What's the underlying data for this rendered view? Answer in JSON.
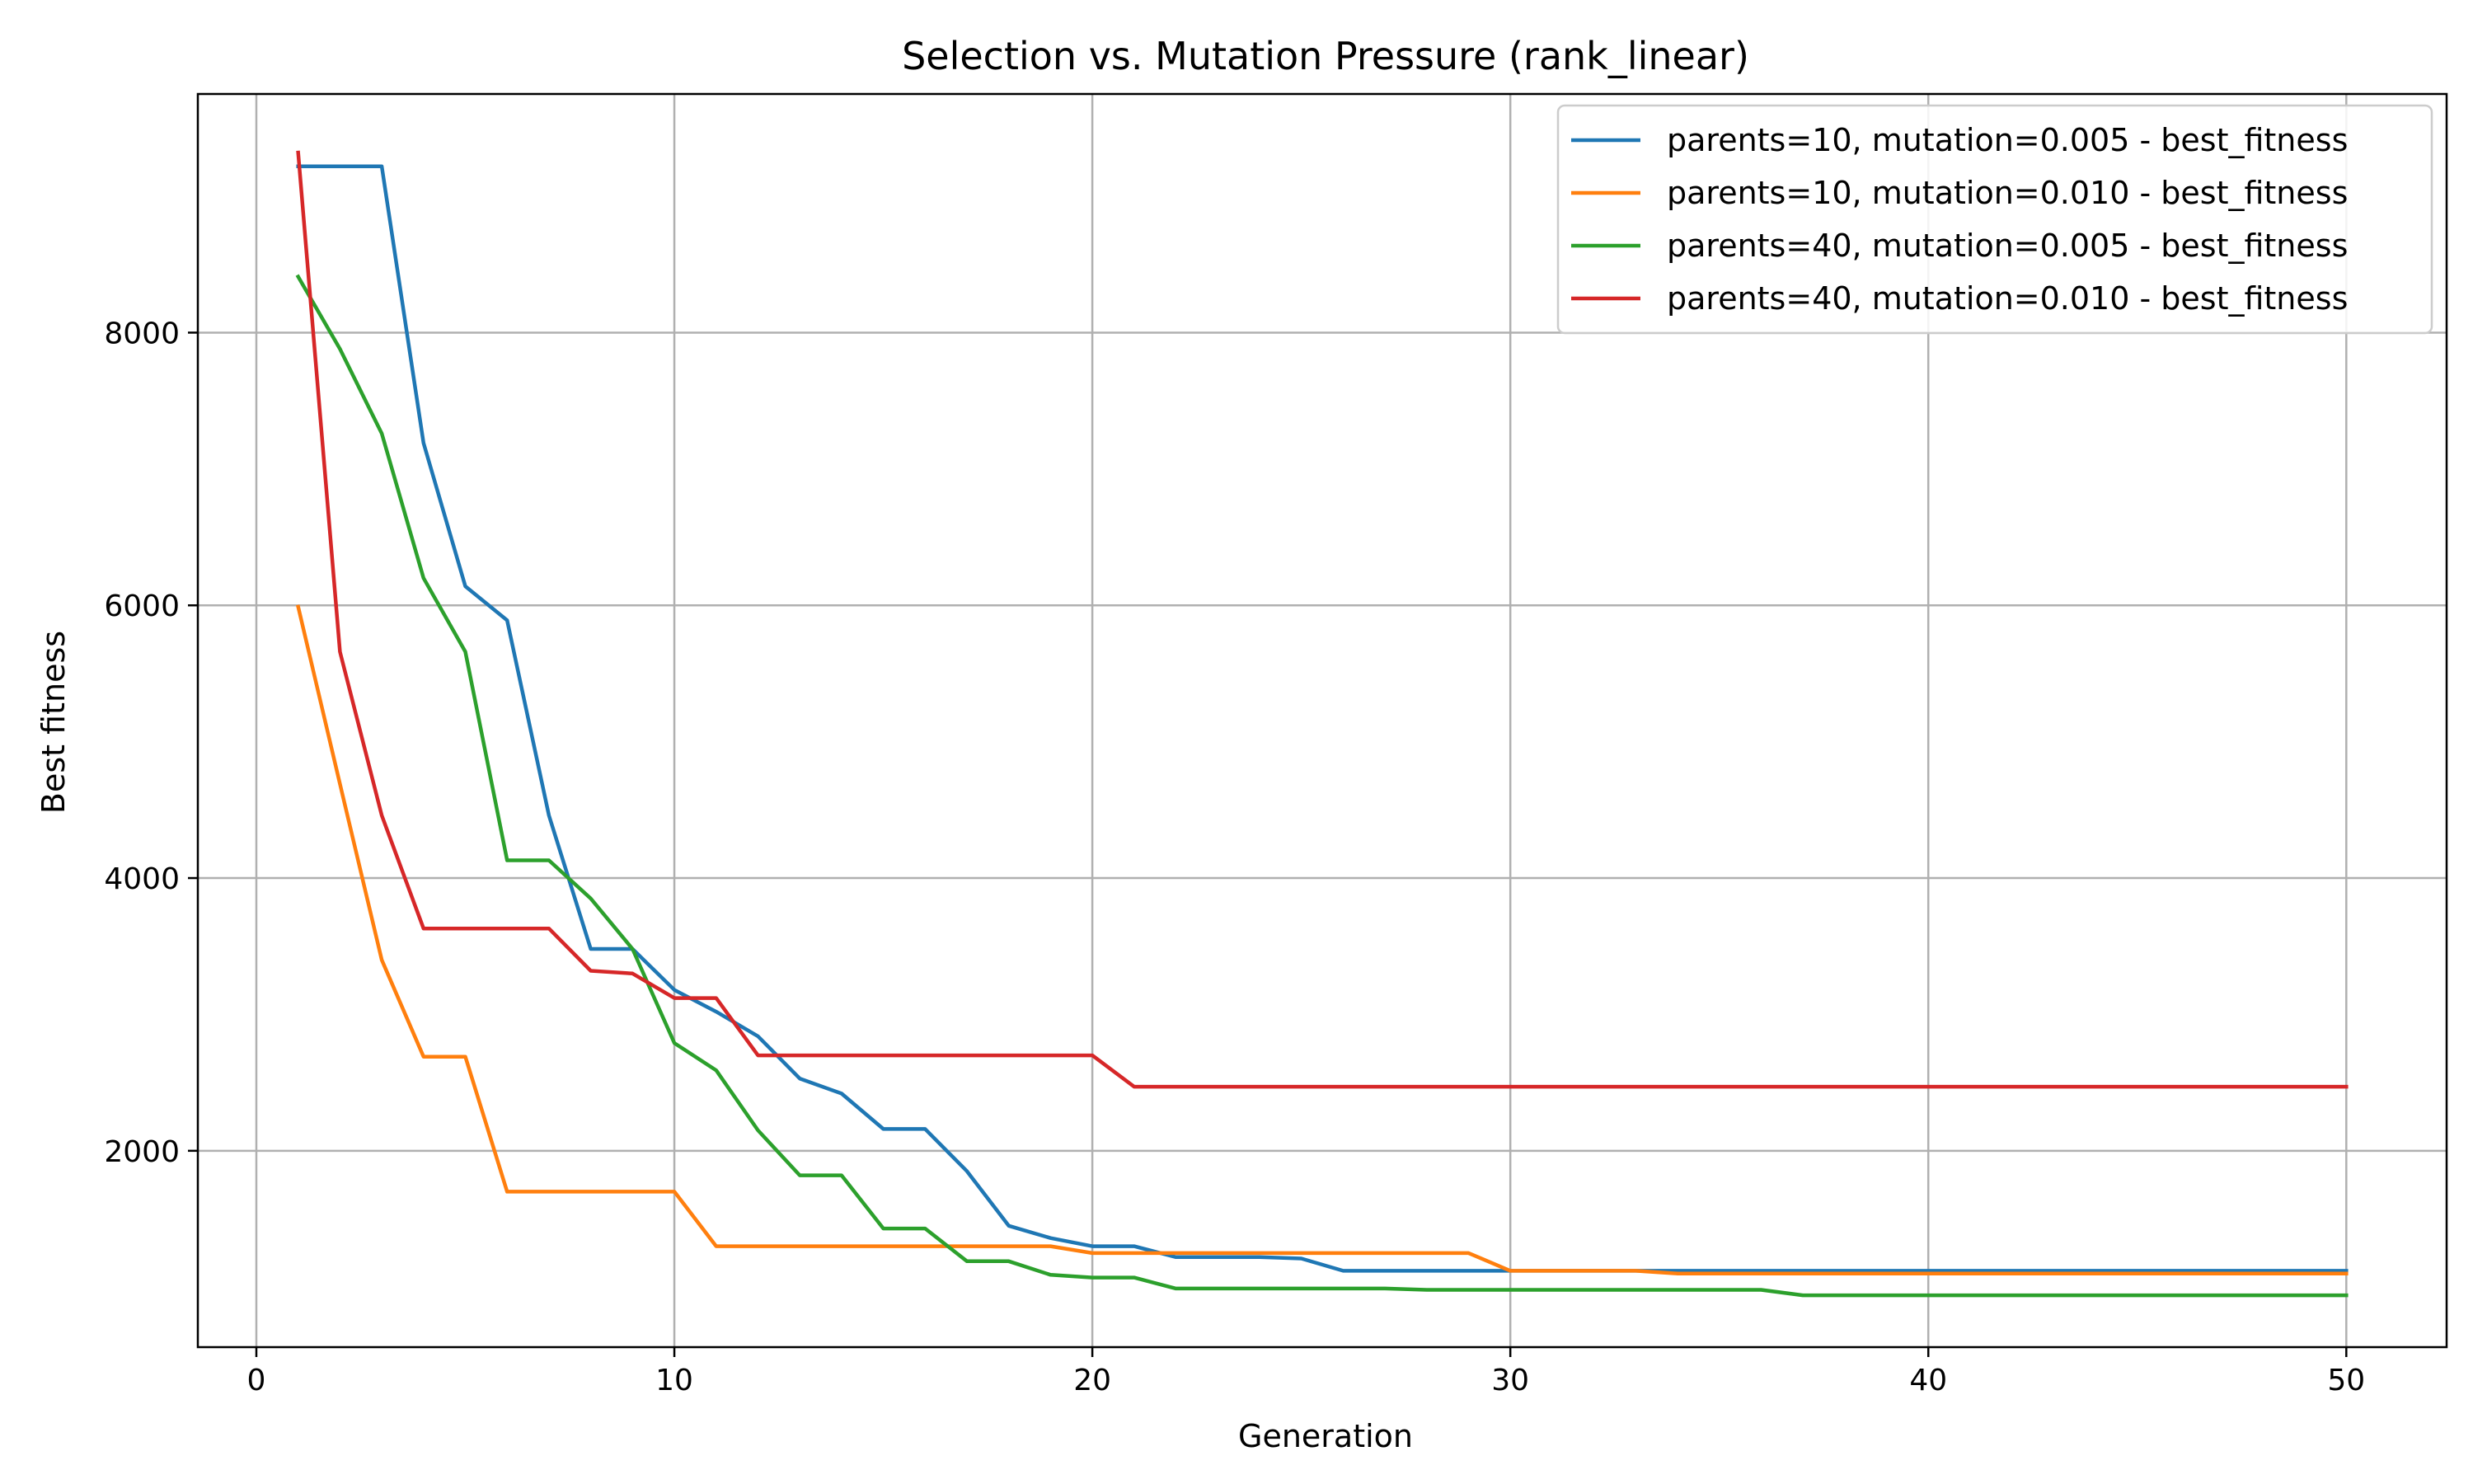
{
  "chart_data": {
    "type": "line",
    "title": "Selection vs. Mutation Pressure (rank_linear)",
    "xlabel": "Generation",
    "ylabel": "Best fitness",
    "xlim": [
      -1.4,
      52.4
    ],
    "ylim": [
      560,
      9750
    ],
    "xticks": [
      0,
      10,
      20,
      30,
      40,
      50
    ],
    "yticks": [
      2000,
      4000,
      6000,
      8000
    ],
    "grid": true,
    "legend_position": "top-right",
    "x": [
      1,
      2,
      3,
      4,
      5,
      6,
      7,
      8,
      9,
      10,
      11,
      12,
      13,
      14,
      15,
      16,
      17,
      18,
      19,
      20,
      21,
      22,
      23,
      24,
      25,
      26,
      27,
      28,
      29,
      30,
      31,
      32,
      33,
      34,
      35,
      36,
      37,
      38,
      39,
      40,
      41,
      42,
      43,
      44,
      45,
      46,
      47,
      48,
      49,
      50
    ],
    "series": [
      {
        "name": "parents=10, mutation=0.005 - best_fitness",
        "color": "#1f77b4",
        "values": [
          9220,
          9220,
          9220,
          7190,
          6140,
          5890,
          4460,
          3480,
          3480,
          3180,
          3020,
          2840,
          2530,
          2420,
          2160,
          2160,
          1850,
          1450,
          1360,
          1300,
          1300,
          1220,
          1220,
          1220,
          1210,
          1120,
          1120,
          1120,
          1120,
          1120,
          1120,
          1120,
          1120,
          1120,
          1120,
          1120,
          1120,
          1120,
          1120,
          1120,
          1120,
          1120,
          1120,
          1120,
          1120,
          1120,
          1120,
          1120,
          1120,
          1120
        ]
      },
      {
        "name": "parents=10, mutation=0.010 - best_fitness",
        "color": "#ff7f0e",
        "values": [
          5990,
          4690,
          3400,
          2690,
          2690,
          1700,
          1700,
          1700,
          1700,
          1700,
          1300,
          1300,
          1300,
          1300,
          1300,
          1300,
          1300,
          1300,
          1300,
          1250,
          1250,
          1250,
          1250,
          1250,
          1250,
          1250,
          1250,
          1250,
          1250,
          1120,
          1120,
          1120,
          1120,
          1100,
          1100,
          1100,
          1100,
          1100,
          1100,
          1100,
          1100,
          1100,
          1100,
          1100,
          1100,
          1100,
          1100,
          1100,
          1100,
          1100
        ]
      },
      {
        "name": "parents=40, mutation=0.005 - best_fitness",
        "color": "#2ca02c",
        "values": [
          8410,
          7880,
          7260,
          6200,
          5660,
          4130,
          4130,
          3850,
          3480,
          2790,
          2590,
          2150,
          1820,
          1820,
          1430,
          1430,
          1190,
          1190,
          1090,
          1070,
          1070,
          990,
          990,
          990,
          990,
          990,
          990,
          980,
          980,
          980,
          980,
          980,
          980,
          980,
          980,
          980,
          940,
          940,
          940,
          940,
          940,
          940,
          940,
          940,
          940,
          940,
          940,
          940,
          940,
          940
        ]
      },
      {
        "name": "parents=40, mutation=0.010 - best_fitness",
        "color": "#d62728",
        "values": [
          9320,
          5660,
          4460,
          3630,
          3630,
          3630,
          3630,
          3320,
          3300,
          3120,
          3120,
          2700,
          2700,
          2700,
          2700,
          2700,
          2700,
          2700,
          2700,
          2700,
          2470,
          2470,
          2470,
          2470,
          2470,
          2470,
          2470,
          2470,
          2470,
          2470,
          2470,
          2470,
          2470,
          2470,
          2470,
          2470,
          2470,
          2470,
          2470,
          2470,
          2470,
          2470,
          2470,
          2470,
          2470,
          2470,
          2470,
          2470,
          2470,
          2470
        ]
      }
    ]
  }
}
